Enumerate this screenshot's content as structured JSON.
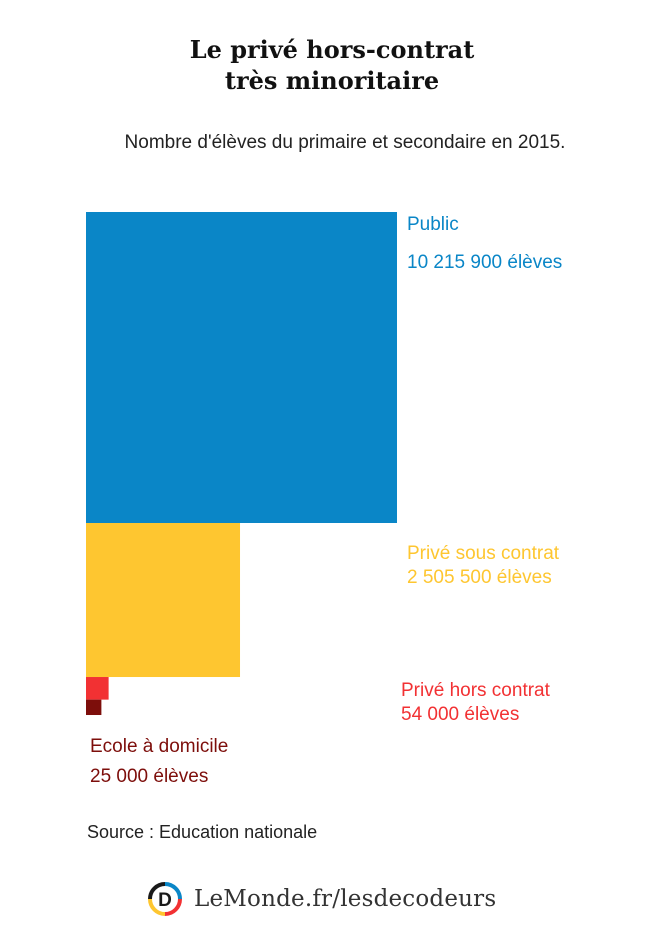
{
  "header": {
    "title_line1": "Le privé hors-contrat",
    "title_line2": "très minoritaire",
    "subtitle": "Nombre d'élèves du primaire et secondaire en 2015."
  },
  "chart_data": {
    "type": "area-squares",
    "unit": "élèves",
    "categories": [
      "Public",
      "Privé sous contrat",
      "Privé hors contrat",
      "Ecole à domicile"
    ],
    "values": [
      10215900,
      2505500,
      54000,
      25000
    ],
    "value_labels": [
      "10 215 900 élèves",
      "2 505 500 élèves",
      "54 000 élèves",
      "25 000 élèves"
    ],
    "colors": [
      "#0a86c7",
      "#fec630",
      "#f23133",
      "#7d0e0b"
    ]
  },
  "source": "Source : Education nationale",
  "footer": {
    "logo_letter": "D",
    "brand": "LeMonde.fr/lesdecodeurs"
  }
}
